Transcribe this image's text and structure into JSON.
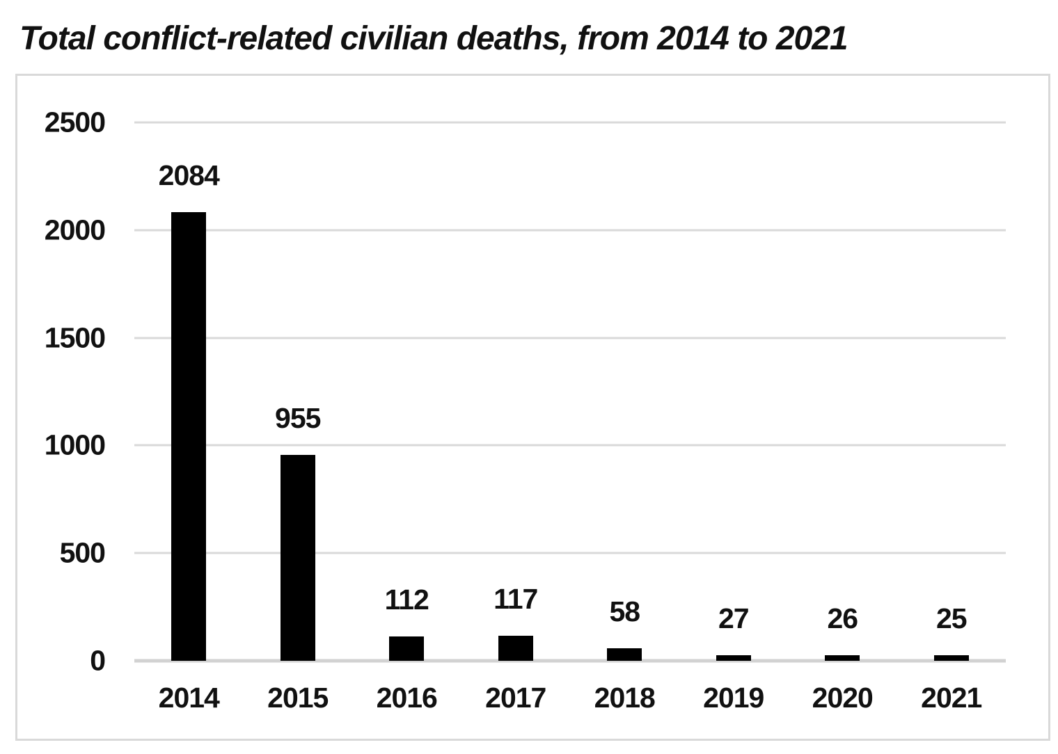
{
  "chart_data": {
    "type": "bar",
    "title": "Total conflict-related civilian deaths, from 2014 to 2021",
    "categories": [
      "2014",
      "2015",
      "2016",
      "2017",
      "2018",
      "2019",
      "2020",
      "2021"
    ],
    "values": [
      2084,
      955,
      112,
      117,
      58,
      27,
      26,
      25
    ],
    "data_labels_shown": true,
    "xlabel": "",
    "ylabel": "",
    "ylim": [
      0,
      2500
    ],
    "yticks": [
      0,
      500,
      1000,
      1500,
      2000,
      2500
    ],
    "grid": "horizontal",
    "legend": "none",
    "bar_color": "#000000",
    "gridline_color": "#d9d9d9",
    "axis_line_color": "#d2d2d2",
    "chart_border_color": "#d9d9d9",
    "text_color": "#111111",
    "background_color": "#ffffff"
  }
}
